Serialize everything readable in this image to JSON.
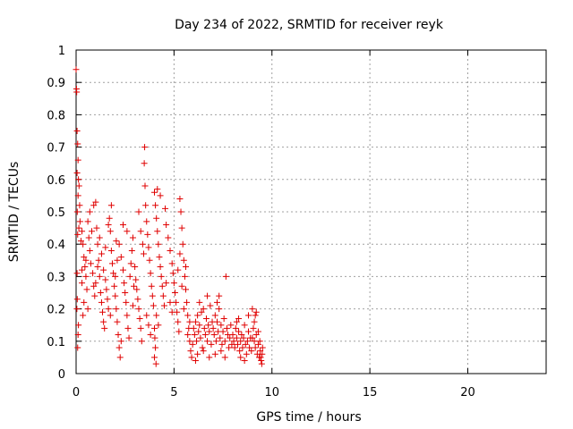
{
  "chart_data": {
    "type": "scatter",
    "title": "Day 234 of 2022, SRMTID for receiver reyk",
    "xlabel": "GPS time / hours",
    "ylabel": "SRMTID / TECUs",
    "xlim": [
      0,
      24
    ],
    "ylim": [
      0,
      1
    ],
    "xticks": [
      0,
      5,
      10,
      15,
      20
    ],
    "yticks": [
      0,
      0.1,
      0.2,
      0.3,
      0.4,
      0.5,
      0.6,
      0.7,
      0.8,
      0.9,
      1
    ],
    "grid": true,
    "marker": "+",
    "series": [
      {
        "name": "SRMTID",
        "color": "#e00000",
        "points": [
          [
            0.0,
            0.94
          ],
          [
            0.02,
            0.88
          ],
          [
            0.03,
            0.87
          ],
          [
            0.05,
            0.75
          ],
          [
            0.08,
            0.71
          ],
          [
            0.1,
            0.66
          ],
          [
            0.05,
            0.62
          ],
          [
            0.12,
            0.6
          ],
          [
            0.15,
            0.58
          ],
          [
            0.1,
            0.55
          ],
          [
            0.18,
            0.52
          ],
          [
            0.06,
            0.5
          ],
          [
            0.2,
            0.47
          ],
          [
            0.14,
            0.45
          ],
          [
            0.08,
            0.43
          ],
          [
            0.25,
            0.41
          ],
          [
            0.05,
            0.31
          ],
          [
            0.06,
            0.23
          ],
          [
            0.04,
            0.2
          ],
          [
            0.1,
            0.12
          ],
          [
            0.08,
            0.08
          ],
          [
            0.12,
            0.15
          ],
          [
            0.3,
            0.44
          ],
          [
            0.35,
            0.4
          ],
          [
            0.4,
            0.36
          ],
          [
            0.45,
            0.33
          ],
          [
            0.5,
            0.3
          ],
          [
            0.3,
            0.28
          ],
          [
            0.55,
            0.26
          ],
          [
            0.4,
            0.22
          ],
          [
            0.6,
            0.2
          ],
          [
            0.35,
            0.18
          ],
          [
            0.5,
            0.35
          ],
          [
            0.65,
            0.42
          ],
          [
            0.7,
            0.38
          ],
          [
            0.75,
            0.34
          ],
          [
            0.8,
            0.44
          ],
          [
            0.85,
            0.31
          ],
          [
            0.9,
            0.27
          ],
          [
            0.95,
            0.24
          ],
          [
            0.6,
            0.47
          ],
          [
            0.7,
            0.5
          ],
          [
            0.9,
            0.52
          ],
          [
            0.3,
            0.32
          ],
          [
            1.0,
            0.53
          ],
          [
            1.05,
            0.45
          ],
          [
            1.1,
            0.4
          ],
          [
            1.15,
            0.35
          ],
          [
            1.2,
            0.3
          ],
          [
            1.25,
            0.25
          ],
          [
            1.3,
            0.22
          ],
          [
            1.35,
            0.19
          ],
          [
            1.4,
            0.16
          ],
          [
            1.0,
            0.28
          ],
          [
            1.1,
            0.33
          ],
          [
            1.2,
            0.42
          ],
          [
            1.3,
            0.37
          ],
          [
            1.4,
            0.32
          ],
          [
            1.5,
            0.29
          ],
          [
            1.55,
            0.26
          ],
          [
            1.6,
            0.23
          ],
          [
            1.65,
            0.2
          ],
          [
            1.7,
            0.48
          ],
          [
            1.75,
            0.44
          ],
          [
            1.8,
            0.38
          ],
          [
            1.85,
            0.34
          ],
          [
            1.9,
            0.31
          ],
          [
            1.95,
            0.27
          ],
          [
            1.5,
            0.39
          ],
          [
            1.65,
            0.46
          ],
          [
            1.8,
            0.52
          ],
          [
            1.45,
            0.14
          ],
          [
            1.75,
            0.18
          ],
          [
            2.0,
            0.24
          ],
          [
            2.05,
            0.2
          ],
          [
            2.1,
            0.16
          ],
          [
            2.15,
            0.12
          ],
          [
            2.2,
            0.08
          ],
          [
            2.25,
            0.05
          ],
          [
            2.3,
            0.1
          ],
          [
            2.0,
            0.3
          ],
          [
            2.1,
            0.35
          ],
          [
            2.2,
            0.4
          ],
          [
            2.3,
            0.36
          ],
          [
            2.4,
            0.32
          ],
          [
            2.45,
            0.28
          ],
          [
            2.5,
            0.25
          ],
          [
            2.55,
            0.22
          ],
          [
            2.6,
            0.18
          ],
          [
            2.65,
            0.14
          ],
          [
            2.7,
            0.11
          ],
          [
            2.75,
            0.3
          ],
          [
            2.8,
            0.34
          ],
          [
            2.85,
            0.38
          ],
          [
            2.9,
            0.42
          ],
          [
            2.95,
            0.27
          ],
          [
            2.4,
            0.46
          ],
          [
            2.6,
            0.44
          ],
          [
            2.9,
            0.21
          ],
          [
            2.05,
            0.41
          ],
          [
            3.0,
            0.33
          ],
          [
            3.05,
            0.29
          ],
          [
            3.1,
            0.26
          ],
          [
            3.15,
            0.23
          ],
          [
            3.2,
            0.2
          ],
          [
            3.25,
            0.17
          ],
          [
            3.3,
            0.14
          ],
          [
            3.35,
            0.1
          ],
          [
            3.4,
            0.4
          ],
          [
            3.45,
            0.37
          ],
          [
            3.5,
            0.7
          ],
          [
            3.48,
            0.65
          ],
          [
            3.52,
            0.58
          ],
          [
            3.55,
            0.52
          ],
          [
            3.6,
            0.47
          ],
          [
            3.65,
            0.43
          ],
          [
            3.7,
            0.39
          ],
          [
            3.75,
            0.35
          ],
          [
            3.8,
            0.31
          ],
          [
            3.85,
            0.27
          ],
          [
            3.9,
            0.24
          ],
          [
            3.95,
            0.21
          ],
          [
            3.3,
            0.44
          ],
          [
            3.2,
            0.5
          ],
          [
            3.6,
            0.18
          ],
          [
            3.7,
            0.15
          ],
          [
            3.8,
            0.12
          ],
          [
            4.0,
            0.56
          ],
          [
            4.05,
            0.52
          ],
          [
            4.1,
            0.48
          ],
          [
            4.15,
            0.44
          ],
          [
            4.2,
            0.4
          ],
          [
            4.25,
            0.36
          ],
          [
            4.3,
            0.33
          ],
          [
            4.35,
            0.3
          ],
          [
            4.4,
            0.27
          ],
          [
            4.45,
            0.24
          ],
          [
            4.5,
            0.21
          ],
          [
            4.0,
            0.14
          ],
          [
            4.02,
            0.11
          ],
          [
            4.05,
            0.08
          ],
          [
            4.0,
            0.05
          ],
          [
            4.08,
            0.03
          ],
          [
            4.1,
            0.18
          ],
          [
            4.2,
            0.15
          ],
          [
            4.6,
            0.46
          ],
          [
            4.7,
            0.42
          ],
          [
            4.8,
            0.38
          ],
          [
            4.9,
            0.34
          ],
          [
            4.95,
            0.31
          ],
          [
            4.55,
            0.51
          ],
          [
            4.3,
            0.55
          ],
          [
            4.15,
            0.57
          ],
          [
            4.6,
            0.28
          ],
          [
            4.8,
            0.22
          ],
          [
            4.9,
            0.19
          ],
          [
            5.0,
            0.28
          ],
          [
            5.05,
            0.25
          ],
          [
            5.1,
            0.22
          ],
          [
            5.15,
            0.19
          ],
          [
            5.2,
            0.16
          ],
          [
            5.25,
            0.13
          ],
          [
            5.3,
            0.54
          ],
          [
            5.35,
            0.5
          ],
          [
            5.4,
            0.45
          ],
          [
            5.45,
            0.4
          ],
          [
            5.5,
            0.35
          ],
          [
            5.55,
            0.3
          ],
          [
            5.6,
            0.26
          ],
          [
            5.65,
            0.22
          ],
          [
            5.7,
            0.18
          ],
          [
            5.75,
            0.14
          ],
          [
            5.8,
            0.1
          ],
          [
            5.85,
            0.07
          ],
          [
            5.9,
            0.05
          ],
          [
            5.2,
            0.32
          ],
          [
            5.3,
            0.37
          ],
          [
            5.4,
            0.27
          ],
          [
            5.5,
            0.2
          ],
          [
            5.6,
            0.33
          ],
          [
            5.7,
            0.12
          ],
          [
            5.8,
            0.16
          ],
          [
            5.95,
            0.09
          ],
          [
            6.0,
            0.14
          ],
          [
            6.05,
            0.12
          ],
          [
            6.1,
            0.16
          ],
          [
            6.15,
            0.1
          ],
          [
            6.2,
            0.18
          ],
          [
            6.25,
            0.13
          ],
          [
            6.3,
            0.15
          ],
          [
            6.35,
            0.11
          ],
          [
            6.4,
            0.19
          ],
          [
            6.45,
            0.08
          ],
          [
            6.5,
            0.2
          ],
          [
            6.55,
            0.14
          ],
          [
            6.6,
            0.12
          ],
          [
            6.65,
            0.17
          ],
          [
            6.7,
            0.1
          ],
          [
            6.75,
            0.15
          ],
          [
            6.8,
            0.13
          ],
          [
            6.85,
            0.21
          ],
          [
            6.9,
            0.09
          ],
          [
            6.95,
            0.16
          ],
          [
            6.2,
            0.06
          ],
          [
            6.5,
            0.07
          ],
          [
            6.8,
            0.05
          ],
          [
            6.3,
            0.22
          ],
          [
            6.7,
            0.24
          ],
          [
            6.1,
            0.04
          ],
          [
            7.0,
            0.14
          ],
          [
            7.05,
            0.12
          ],
          [
            7.1,
            0.18
          ],
          [
            7.15,
            0.1
          ],
          [
            7.2,
            0.16
          ],
          [
            7.25,
            0.13
          ],
          [
            7.3,
            0.2
          ],
          [
            7.35,
            0.11
          ],
          [
            7.4,
            0.15
          ],
          [
            7.45,
            0.09
          ],
          [
            7.5,
            0.13
          ],
          [
            7.55,
            0.17
          ],
          [
            7.6,
            0.1
          ],
          [
            7.65,
            0.3
          ],
          [
            7.7,
            0.14
          ],
          [
            7.75,
            0.12
          ],
          [
            7.8,
            0.08
          ],
          [
            7.85,
            0.11
          ],
          [
            7.9,
            0.15
          ],
          [
            7.95,
            0.09
          ],
          [
            7.2,
            0.22
          ],
          [
            7.4,
            0.07
          ],
          [
            7.6,
            0.05
          ],
          [
            7.1,
            0.06
          ],
          [
            7.3,
            0.24
          ],
          [
            8.0,
            0.12
          ],
          [
            8.05,
            0.1
          ],
          [
            8.1,
            0.08
          ],
          [
            8.15,
            0.14
          ],
          [
            8.2,
            0.11
          ],
          [
            8.25,
            0.09
          ],
          [
            8.3,
            0.13
          ],
          [
            8.35,
            0.07
          ],
          [
            8.4,
            0.1
          ],
          [
            8.45,
            0.12
          ],
          [
            8.5,
            0.08
          ],
          [
            8.55,
            0.11
          ],
          [
            8.6,
            0.15
          ],
          [
            8.65,
            0.09
          ],
          [
            8.7,
            0.06
          ],
          [
            8.75,
            0.1
          ],
          [
            8.8,
            0.13
          ],
          [
            8.85,
            0.08
          ],
          [
            8.9,
            0.11
          ],
          [
            8.95,
            0.07
          ],
          [
            8.2,
            0.16
          ],
          [
            8.4,
            0.05
          ],
          [
            8.6,
            0.04
          ],
          [
            8.8,
            0.18
          ],
          [
            8.3,
            0.17
          ],
          [
            9.0,
            0.2
          ],
          [
            9.05,
            0.14
          ],
          [
            9.1,
            0.1
          ],
          [
            9.15,
            0.08
          ],
          [
            9.2,
            0.12
          ],
          [
            9.25,
            0.06
          ],
          [
            9.3,
            0.09
          ],
          [
            9.35,
            0.05
          ],
          [
            9.4,
            0.07
          ],
          [
            9.45,
            0.04
          ],
          [
            9.5,
            0.06
          ],
          [
            9.52,
            0.08
          ],
          [
            9.48,
            0.03
          ],
          [
            9.42,
            0.05
          ],
          [
            9.1,
            0.16
          ],
          [
            9.2,
            0.19
          ],
          [
            9.3,
            0.13
          ],
          [
            9.38,
            0.1
          ],
          [
            9.0,
            0.11
          ],
          [
            9.15,
            0.18
          ]
        ]
      }
    ]
  }
}
